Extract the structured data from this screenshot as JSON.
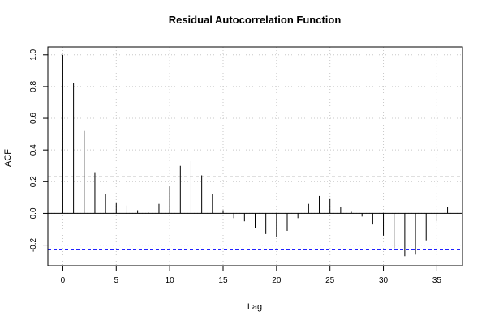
{
  "chart_data": {
    "type": "bar",
    "title": "Residual Autocorrelation Function",
    "xlabel": "Lag",
    "ylabel": "ACF",
    "xlim": [
      -1.4,
      37.4
    ],
    "ylim": [
      -0.33,
      1.05
    ],
    "xticks": [
      0,
      5,
      10,
      15,
      20,
      25,
      30,
      35
    ],
    "yticks": [
      -0.2,
      0.0,
      0.2,
      0.4,
      0.6,
      0.8,
      1.0
    ],
    "ytick_labels": [
      "-0.2",
      "0.0",
      "0.2",
      "0.4",
      "0.6",
      "0.8",
      "1.0"
    ],
    "grid": true,
    "lags": [
      0,
      1,
      2,
      3,
      4,
      5,
      6,
      7,
      8,
      9,
      10,
      11,
      12,
      13,
      14,
      15,
      16,
      17,
      18,
      19,
      20,
      21,
      22,
      23,
      24,
      25,
      26,
      27,
      28,
      29,
      30,
      31,
      32,
      33,
      34,
      35,
      36
    ],
    "acf": [
      1.0,
      0.82,
      0.52,
      0.26,
      0.12,
      0.07,
      0.05,
      0.02,
      0.005,
      0.06,
      0.17,
      0.3,
      0.33,
      0.24,
      0.12,
      0.02,
      -0.03,
      -0.05,
      -0.09,
      -0.13,
      -0.15,
      -0.11,
      -0.03,
      0.06,
      0.11,
      0.09,
      0.04,
      0.01,
      -0.02,
      -0.07,
      -0.14,
      -0.22,
      -0.27,
      -0.26,
      -0.17,
      -0.05,
      0.04
    ],
    "confidence_bound": 0.23,
    "colors": {
      "bound_upper": "#000000",
      "bound_lower": "#0000ff",
      "grid": "#c8c8c8"
    }
  }
}
